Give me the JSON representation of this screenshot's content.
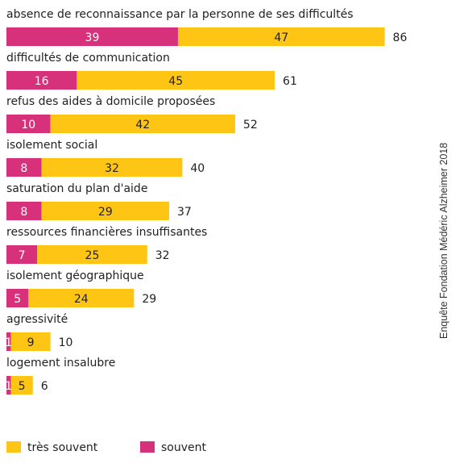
{
  "chart_data": {
    "type": "bar",
    "orientation": "horizontal",
    "stacked": true,
    "categories": [
      "absence de reconnaissance par la personne de ses difficultés",
      "difficultés de communication",
      "refus des aides à domicile proposées",
      "isolement social",
      "saturation du plan d'aide",
      "ressources financières insuffisantes",
      "isolement géographique",
      "agressivité",
      "logement insalubre"
    ],
    "series": [
      {
        "name": "souvent",
        "color": "#D6317A",
        "values": [
          39,
          16,
          10,
          8,
          8,
          7,
          5,
          1,
          1
        ]
      },
      {
        "name": "très souvent",
        "color": "#FFC515",
        "values": [
          47,
          45,
          42,
          32,
          29,
          25,
          24,
          9,
          5
        ]
      }
    ],
    "totals": [
      86,
      61,
      52,
      40,
      37,
      32,
      29,
      10,
      6
    ],
    "legend": {
      "position": "bottom-left",
      "items": [
        {
          "label": "très souvent",
          "color": "#FFC515"
        },
        {
          "label": "souvent",
          "color": "#D6317A"
        }
      ]
    },
    "source_note": "Enquête Fondation Médéric Alzheimer 2018",
    "grid": false
  }
}
